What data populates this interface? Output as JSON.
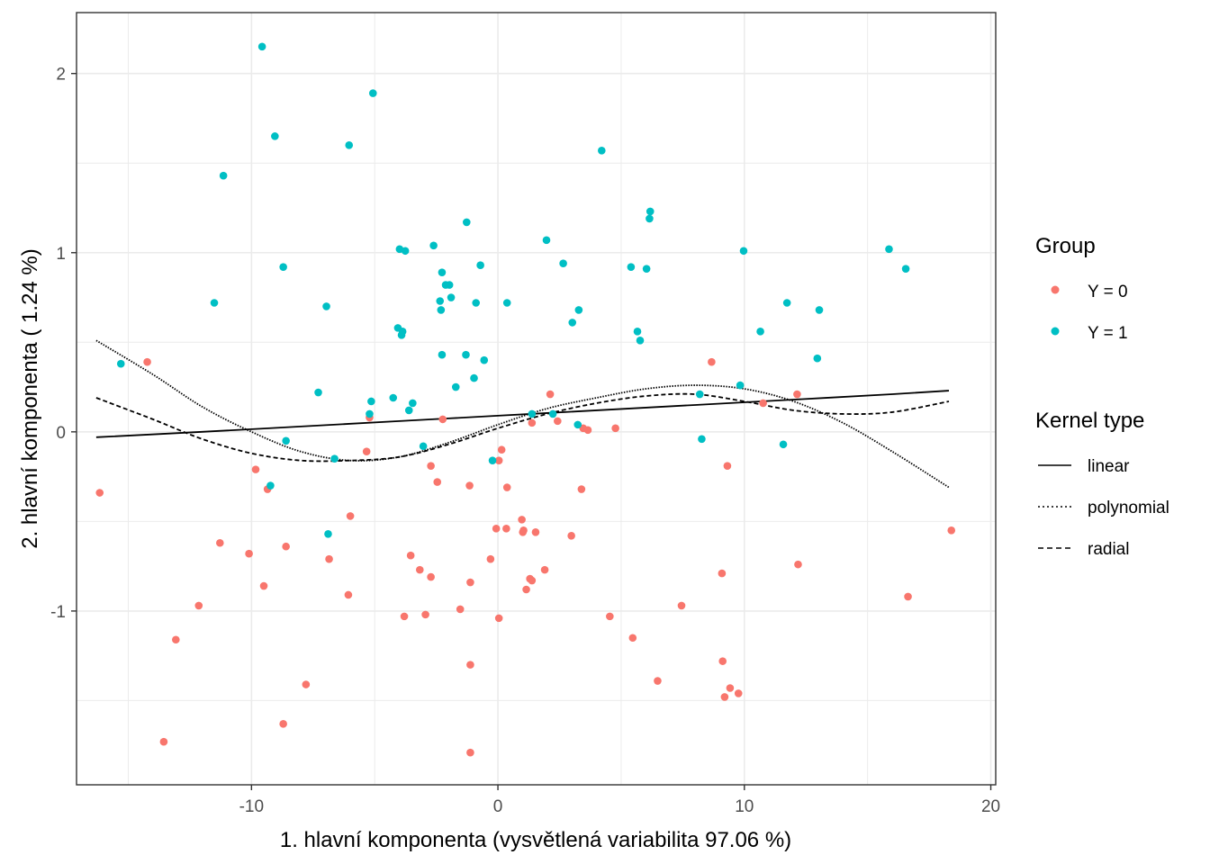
{
  "chart_data": {
    "type": "scatter",
    "title": "",
    "xlabel": "1. hlavní komponenta (vysvětlená variabilita 97.06 %)",
    "ylabel": "2. hlavní komponenta ( 1.24 %)",
    "xlim": [
      -17.1,
      20.2
    ],
    "ylim": [
      -1.97,
      2.34
    ],
    "x_ticks": [
      -10,
      0,
      10,
      20
    ],
    "x_tick_labels": [
      "-10",
      "0",
      "10",
      "20"
    ],
    "y_ticks": [
      -1,
      0,
      1,
      2
    ],
    "y_tick_labels": [
      "-1",
      "0",
      "1",
      "2"
    ],
    "grid": true,
    "legend_placement": "right",
    "legend": {
      "group_title": "Group",
      "groups": [
        {
          "label": "Y = 0",
          "color": "#F8766D"
        },
        {
          "label": "Y = 1",
          "color": "#00BFC4"
        }
      ],
      "kernel_title": "Kernel type",
      "kernels": [
        {
          "label": "linear",
          "dash": "solid"
        },
        {
          "label": "polynomial",
          "dash": "dotted"
        },
        {
          "label": "radial",
          "dash": "dashed"
        }
      ]
    },
    "series": [
      {
        "name": "Y = 0",
        "color": "#F8766D",
        "points": [
          [
            -14.23,
            0.39
          ],
          [
            8.67,
            0.39
          ],
          [
            2.12,
            0.21
          ],
          [
            12.14,
            0.21
          ],
          [
            10.76,
            0.16
          ],
          [
            -2.24,
            0.07
          ],
          [
            -5.21,
            0.08
          ],
          [
            3.65,
            0.01
          ],
          [
            3.46,
            0.02
          ],
          [
            1.38,
            0.05
          ],
          [
            2.42,
            0.06
          ],
          [
            4.77,
            0.02
          ],
          [
            -5.33,
            -0.11
          ],
          [
            0.15,
            -0.1
          ],
          [
            -9.83,
            -0.21
          ],
          [
            -9.35,
            -0.32
          ],
          [
            -1.15,
            -0.3
          ],
          [
            -2.72,
            -0.19
          ],
          [
            9.31,
            -0.19
          ],
          [
            0.04,
            -0.16
          ],
          [
            -2.46,
            -0.28
          ],
          [
            0.37,
            -0.31
          ],
          [
            3.39,
            -0.32
          ],
          [
            -16.16,
            -0.34
          ],
          [
            -5.99,
            -0.47
          ],
          [
            -11.28,
            -0.62
          ],
          [
            -8.6,
            -0.64
          ],
          [
            -3.54,
            -0.69
          ],
          [
            0.34,
            -0.54
          ],
          [
            -0.07,
            -0.54
          ],
          [
            1.01,
            -0.56
          ],
          [
            1.04,
            -0.55
          ],
          [
            1.53,
            -0.56
          ],
          [
            1.9,
            -0.77
          ],
          [
            1.38,
            -0.83
          ],
          [
            0.97,
            -0.49
          ],
          [
            2.98,
            -0.58
          ],
          [
            -0.3,
            -0.71
          ],
          [
            -10.1,
            -0.68
          ],
          [
            1.3,
            -0.82
          ],
          [
            9.09,
            -0.79
          ],
          [
            12.18,
            -0.74
          ],
          [
            18.4,
            -0.55
          ],
          [
            -3.17,
            -0.77
          ],
          [
            -2.72,
            -0.81
          ],
          [
            -6.85,
            -0.71
          ],
          [
            -9.5,
            -0.86
          ],
          [
            -2.94,
            -1.02
          ],
          [
            1.15,
            -0.88
          ],
          [
            -1.53,
            -0.99
          ],
          [
            -6.07,
            -0.91
          ],
          [
            -12.14,
            -0.97
          ],
          [
            -3.8,
            -1.03
          ],
          [
            -1.12,
            -0.84
          ],
          [
            0.04,
            -1.04
          ],
          [
            4.54,
            -1.03
          ],
          [
            5.47,
            -1.15
          ],
          [
            6.48,
            -1.39
          ],
          [
            -13.07,
            -1.16
          ],
          [
            -7.79,
            -1.41
          ],
          [
            -1.12,
            -1.3
          ],
          [
            -8.71,
            -1.63
          ],
          [
            -13.56,
            -1.73
          ],
          [
            9.12,
            -1.28
          ],
          [
            9.76,
            -1.46
          ],
          [
            9.2,
            -1.48
          ],
          [
            9.42,
            -1.43
          ],
          [
            16.64,
            -0.92
          ],
          [
            7.45,
            -0.97
          ],
          [
            -1.12,
            -1.79
          ]
        ]
      },
      {
        "name": "Y = 1",
        "color": "#00BFC4",
        "points": [
          [
            -9.57,
            2.15
          ],
          [
            -5.07,
            1.89
          ],
          [
            -9.05,
            1.65
          ],
          [
            4.21,
            1.57
          ],
          [
            -6.04,
            1.6
          ],
          [
            -11.14,
            1.43
          ],
          [
            6.18,
            1.23
          ],
          [
            6.15,
            1.19
          ],
          [
            -1.27,
            1.17
          ],
          [
            1.97,
            1.07
          ],
          [
            15.87,
            1.02
          ],
          [
            -2.61,
            1.04
          ],
          [
            -3.99,
            1.02
          ],
          [
            9.97,
            1.01
          ],
          [
            16.55,
            0.91
          ],
          [
            -8.71,
            0.92
          ],
          [
            2.65,
            0.94
          ],
          [
            -3.76,
            1.01
          ],
          [
            5.4,
            0.92
          ],
          [
            6.03,
            0.91
          ],
          [
            -0.71,
            0.93
          ],
          [
            -2.27,
            0.89
          ],
          [
            -2.12,
            0.82
          ],
          [
            -1.9,
            0.75
          ],
          [
            -11.51,
            0.72
          ],
          [
            -6.96,
            0.7
          ],
          [
            11.73,
            0.72
          ],
          [
            13.04,
            0.68
          ],
          [
            -2.35,
            0.73
          ],
          [
            -1.97,
            0.82
          ],
          [
            -2.31,
            0.68
          ],
          [
            -0.89,
            0.72
          ],
          [
            0.37,
            0.72
          ],
          [
            3.28,
            0.68
          ],
          [
            -4.06,
            0.58
          ],
          [
            3.02,
            0.61
          ],
          [
            5.66,
            0.56
          ],
          [
            -3.91,
            0.54
          ],
          [
            -3.87,
            0.56
          ],
          [
            5.77,
            0.51
          ],
          [
            10.65,
            0.56
          ],
          [
            -1.3,
            0.43
          ],
          [
            -2.27,
            0.43
          ],
          [
            -0.56,
            0.4
          ],
          [
            -0.97,
            0.3
          ],
          [
            -15.3,
            0.38
          ],
          [
            12.96,
            0.41
          ],
          [
            9.83,
            0.26
          ],
          [
            -1.71,
            0.25
          ],
          [
            -7.29,
            0.22
          ],
          [
            -4.25,
            0.19
          ],
          [
            -5.14,
            0.17
          ],
          [
            -3.46,
            0.16
          ],
          [
            -3.61,
            0.12
          ],
          [
            8.19,
            0.21
          ],
          [
            -3.03,
            -0.08
          ],
          [
            2.23,
            0.1
          ],
          [
            3.24,
            0.04
          ],
          [
            -5.21,
            0.1
          ],
          [
            -8.6,
            -0.05
          ],
          [
            -6.63,
            -0.15
          ],
          [
            -9.23,
            -0.3
          ],
          [
            -6.89,
            -0.57
          ],
          [
            -0.22,
            -0.16
          ],
          [
            8.27,
            -0.04
          ],
          [
            11.58,
            -0.07
          ],
          [
            1.38,
            0.1
          ]
        ]
      }
    ],
    "lines": [
      {
        "name": "linear",
        "dash": "solid",
        "x": [
          -16.3,
          -12,
          -8,
          -4,
          0,
          4,
          8,
          12,
          16,
          18.3
        ],
        "y": [
          -0.03,
          0.0,
          0.03,
          0.06,
          0.09,
          0.12,
          0.15,
          0.18,
          0.21,
          0.23
        ]
      },
      {
        "name": "polynomial",
        "dash": "dotted",
        "x": [
          -16.3,
          -14,
          -12,
          -10,
          -8,
          -6,
          -4,
          -2,
          0,
          2,
          4,
          6,
          8,
          10,
          12,
          14,
          16,
          18.3
        ],
        "y": [
          0.51,
          0.32,
          0.14,
          0.0,
          -0.11,
          -0.16,
          -0.14,
          -0.06,
          0.04,
          0.13,
          0.19,
          0.24,
          0.26,
          0.24,
          0.17,
          0.05,
          -0.11,
          -0.31
        ]
      },
      {
        "name": "radial",
        "dash": "dashed",
        "x": [
          -16.3,
          -14,
          -12,
          -10,
          -8,
          -6,
          -4,
          -2,
          0,
          2,
          4,
          6,
          8,
          10,
          12,
          14,
          16,
          18.3
        ],
        "y": [
          0.19,
          0.07,
          -0.04,
          -0.12,
          -0.16,
          -0.16,
          -0.14,
          -0.07,
          0.02,
          0.1,
          0.16,
          0.2,
          0.21,
          0.17,
          0.12,
          0.1,
          0.11,
          0.17
        ]
      }
    ]
  }
}
